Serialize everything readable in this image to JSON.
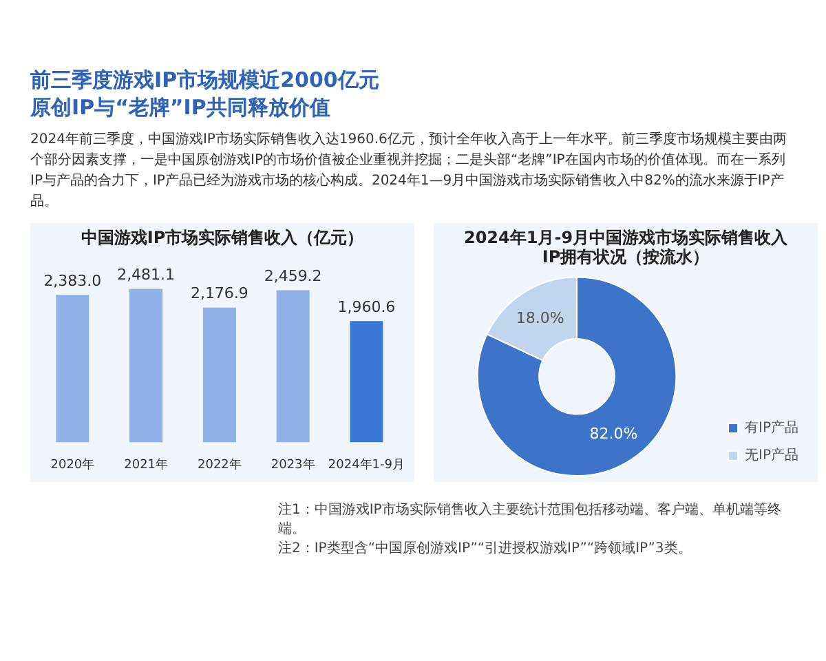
{
  "chart_data": [
    {
      "type": "bar",
      "title": "中国游戏IP市场实际销售收入（亿元）",
      "categories": [
        "2020年",
        "2021年",
        "2022年",
        "2023年",
        "2024年1-9月"
      ],
      "values": [
        2383.0,
        2481.1,
        2176.9,
        2459.2,
        1960.6
      ],
      "colors": [
        "#8fb1e5",
        "#8fb1e5",
        "#8fb1e5",
        "#8fb1e5",
        "#3d78d6"
      ],
      "value_labels": [
        "2,383.0",
        "2,481.1",
        "2,176.9",
        "2,459.2",
        "1,960.6"
      ],
      "annotations": [
        "前三季度游戏IP市场规模近2000亿元",
        "原创IP与“老牌”IP共同释放价值",
        "2024年前三季度，中国游戏IP市场实际销售收入达1960.6亿元，预计全年收入高于上一年水平。前三季度市场规模主要由两个部分因素支撑，一是中国原创游戏IP的市场价值被企业重视并挖掘；二是头部“老牌”IP在国内市场的价值体现。而在一系列IP与产品的合力下，IP产品已经为游戏市场的核心构成。2024年1—9月中国游戏市场实际销售收入中82%的流水来源于IP产品。"
      ]
    },
    {
      "type": "donut",
      "title": "2024年1月-9月中国游戏市场实际销售收入\nIP拥有状况（按流水）",
      "categories": [
        "有IP产品",
        "无IP产品"
      ],
      "values": [
        82.0,
        18.0
      ],
      "colors": [
        "#3d74c9",
        "#c3d4ef"
      ],
      "value_labels": [
        "82.0%",
        "18.0%"
      ],
      "legend": "bottom right",
      "annotations": [
        "注1：中国游戏IP市场实际销售收入主要统计范围包括移动端、客户端、单机端等终端。",
        "注2：IP类型含“中国原创游戏IP”“引进授权游戏IP”“跨领域IP”3类。"
      ]
    }
  ]
}
